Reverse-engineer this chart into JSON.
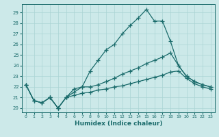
{
  "xlabel": "Humidex (Indice chaleur)",
  "background_color": "#cce9e9",
  "grid_color": "#aad4d4",
  "line_color": "#1a6b6b",
  "x_ticks": [
    0,
    1,
    2,
    3,
    4,
    5,
    6,
    7,
    8,
    9,
    10,
    11,
    12,
    13,
    14,
    15,
    16,
    17,
    18,
    19,
    20,
    21,
    22,
    23
  ],
  "y_ticks": [
    20,
    21,
    22,
    23,
    24,
    25,
    26,
    27,
    28,
    29
  ],
  "ylim": [
    19.6,
    29.8
  ],
  "xlim": [
    -0.5,
    23.5
  ],
  "line1": [
    22.2,
    20.7,
    20.5,
    21.0,
    20.0,
    21.0,
    21.8,
    22.0,
    23.5,
    24.5,
    25.5,
    26.0,
    27.0,
    27.8,
    28.5,
    29.3,
    28.2,
    28.2,
    26.3,
    24.0,
    23.0,
    22.5,
    22.2,
    22.0
  ],
  "line2": [
    22.2,
    20.7,
    20.5,
    21.0,
    20.0,
    21.0,
    21.5,
    22.0,
    22.0,
    22.2,
    22.5,
    22.8,
    23.2,
    23.5,
    23.8,
    24.2,
    24.5,
    24.8,
    25.2,
    24.0,
    23.0,
    22.5,
    22.2,
    22.0
  ],
  "line3": [
    22.2,
    20.7,
    20.5,
    21.0,
    20.0,
    21.0,
    21.2,
    21.4,
    21.5,
    21.7,
    21.8,
    22.0,
    22.1,
    22.3,
    22.5,
    22.7,
    22.9,
    23.1,
    23.4,
    23.5,
    22.8,
    22.3,
    22.0,
    21.8
  ]
}
